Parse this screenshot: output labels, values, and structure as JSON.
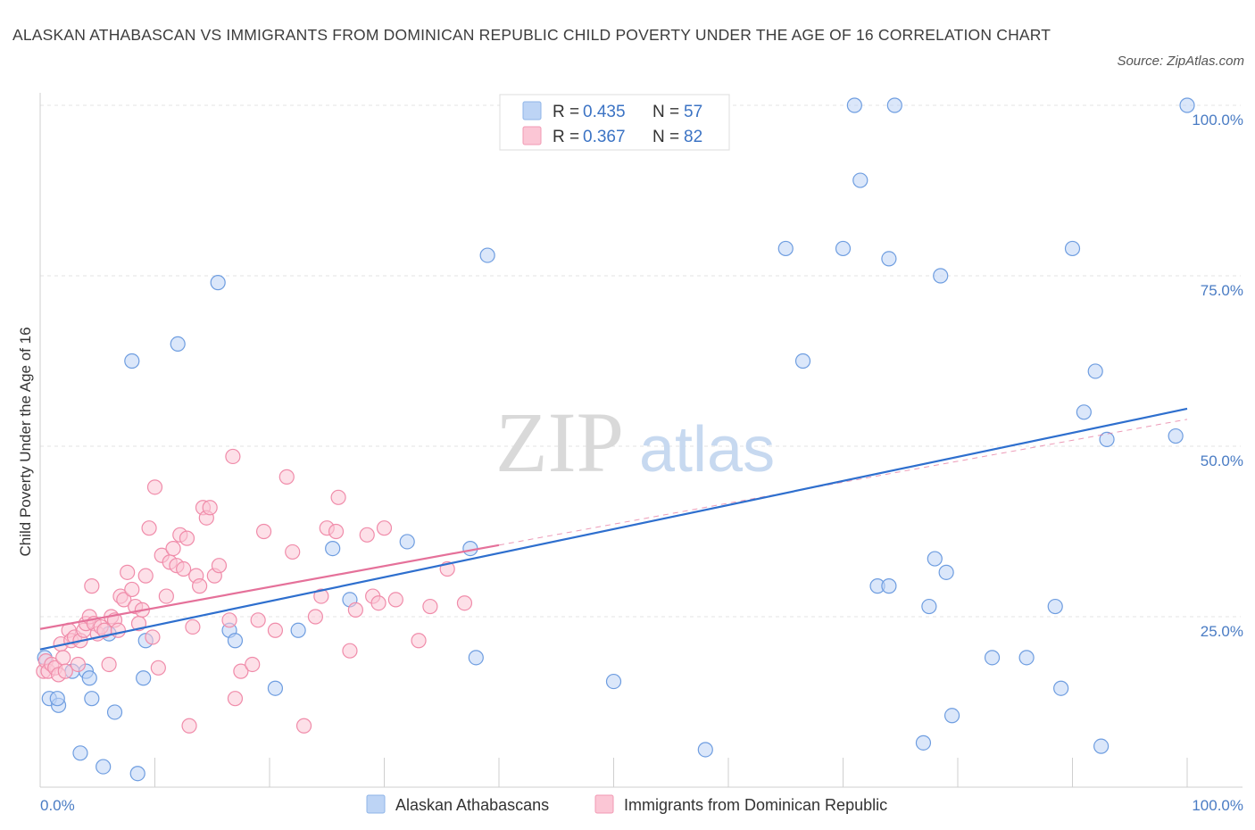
{
  "header": {
    "title": "ALASKAN ATHABASCAN VS IMMIGRANTS FROM DOMINICAN REPUBLIC CHILD POVERTY UNDER THE AGE OF 16 CORRELATION CHART",
    "source": "Source: ZipAtlas.com"
  },
  "watermark": {
    "zip": "ZIP",
    "atlas": "atlas"
  },
  "legend": {
    "r_label": "R =",
    "n_label": "N =",
    "rows": [
      {
        "r": "0.435",
        "n": "57",
        "color": "#8fb5e8",
        "fill": "#bdd4f5"
      },
      {
        "r": "0.367",
        "n": "82",
        "color": "#f29ab4",
        "fill": "#fbc6d5"
      }
    ]
  },
  "chart_data": {
    "type": "scatter",
    "title": "ALASKAN ATHABASCAN VS IMMIGRANTS FROM DOMINICAN REPUBLIC CHILD POVERTY UNDER THE AGE OF 16 CORRELATION CHART",
    "xlabel": "",
    "ylabel": "Child Poverty Under the Age of 16",
    "xlim": [
      0,
      100
    ],
    "ylim": [
      0,
      100
    ],
    "x_tick_labels": [
      "0.0%",
      "100.0%"
    ],
    "y_tick_labels": [
      "25.0%",
      "50.0%",
      "75.0%",
      "100.0%"
    ],
    "y_ticks": [
      25,
      50,
      75,
      100
    ],
    "grid": true,
    "legend_position": "top-center",
    "series": [
      {
        "name": "Alaskan Athabascans",
        "color": "#6e9de0",
        "fill": "#bdd4f5",
        "trend": {
          "x0": 0,
          "y0": 20.2,
          "x1": 100,
          "y1": 55.5,
          "color": "#2e6fce"
        },
        "points": [
          [
            0.4,
            19
          ],
          [
            0.8,
            13
          ],
          [
            1.6,
            12
          ],
          [
            1.5,
            13
          ],
          [
            2.8,
            17
          ],
          [
            3.5,
            5
          ],
          [
            4,
            17
          ],
          [
            4.3,
            16
          ],
          [
            4.5,
            13
          ],
          [
            5.5,
            3
          ],
          [
            6,
            22.5
          ],
          [
            6.5,
            11
          ],
          [
            8,
            62.5
          ],
          [
            8.5,
            2
          ],
          [
            9,
            16
          ],
          [
            9.2,
            21.5
          ],
          [
            12,
            65
          ],
          [
            15.5,
            74
          ],
          [
            16.5,
            23
          ],
          [
            17,
            21.5
          ],
          [
            20.5,
            14.5
          ],
          [
            22.5,
            23
          ],
          [
            25.5,
            35
          ],
          [
            27,
            27.5
          ],
          [
            32,
            36
          ],
          [
            37.5,
            35
          ],
          [
            38,
            19
          ],
          [
            39,
            78
          ],
          [
            50,
            15.5
          ],
          [
            58,
            5.5
          ],
          [
            65,
            79
          ],
          [
            66.5,
            62.5
          ],
          [
            70,
            79
          ],
          [
            71,
            100
          ],
          [
            71.5,
            89
          ],
          [
            73,
            29.5
          ],
          [
            74,
            77.5
          ],
          [
            74,
            29.5
          ],
          [
            74.5,
            100
          ],
          [
            77,
            6.5
          ],
          [
            77.5,
            26.5
          ],
          [
            78,
            33.5
          ],
          [
            78.5,
            75
          ],
          [
            79,
            31.5
          ],
          [
            79.5,
            10.5
          ],
          [
            83,
            19
          ],
          [
            86,
            19
          ],
          [
            88.5,
            26.5
          ],
          [
            89,
            14.5
          ],
          [
            90,
            79
          ],
          [
            91,
            55
          ],
          [
            92,
            61
          ],
          [
            92.5,
            6
          ],
          [
            93,
            51
          ],
          [
            99,
            51.5
          ],
          [
            100,
            100
          ]
        ]
      },
      {
        "name": "Immigrants from Dominican Republic",
        "color": "#f08caa",
        "fill": "#fbc6d5",
        "trend": {
          "x0": 0,
          "y0": 23.2,
          "x1": 40,
          "y1": 35.5,
          "color": "#e5719a"
        },
        "points": [
          [
            0.3,
            17
          ],
          [
            0.5,
            18.5
          ],
          [
            0.7,
            17
          ],
          [
            1,
            18
          ],
          [
            1.3,
            17.5
          ],
          [
            1.6,
            16.5
          ],
          [
            1.8,
            21
          ],
          [
            2,
            19
          ],
          [
            2.2,
            17
          ],
          [
            2.5,
            23
          ],
          [
            2.7,
            21.5
          ],
          [
            3,
            22
          ],
          [
            3.3,
            18
          ],
          [
            3.5,
            21.5
          ],
          [
            3.8,
            23
          ],
          [
            4,
            24
          ],
          [
            4.3,
            25
          ],
          [
            4.5,
            29.5
          ],
          [
            4.7,
            24
          ],
          [
            5,
            22.5
          ],
          [
            5.3,
            23.5
          ],
          [
            5.6,
            23
          ],
          [
            6,
            18
          ],
          [
            6.2,
            25
          ],
          [
            6.5,
            24.5
          ],
          [
            6.8,
            23
          ],
          [
            7,
            28
          ],
          [
            7.3,
            27.5
          ],
          [
            7.6,
            31.5
          ],
          [
            8,
            29
          ],
          [
            8.3,
            26.5
          ],
          [
            8.6,
            24
          ],
          [
            8.9,
            26
          ],
          [
            9.2,
            31
          ],
          [
            9.5,
            38
          ],
          [
            9.8,
            22
          ],
          [
            10,
            44
          ],
          [
            10.3,
            17.5
          ],
          [
            10.6,
            34
          ],
          [
            11,
            28
          ],
          [
            11.3,
            33
          ],
          [
            11.6,
            35
          ],
          [
            11.9,
            32.5
          ],
          [
            12.2,
            37
          ],
          [
            12.5,
            32
          ],
          [
            12.8,
            36.5
          ],
          [
            13,
            9
          ],
          [
            13.3,
            23.5
          ],
          [
            13.6,
            31
          ],
          [
            13.9,
            29.5
          ],
          [
            14.2,
            41
          ],
          [
            14.5,
            39.5
          ],
          [
            14.8,
            41
          ],
          [
            15.2,
            31
          ],
          [
            15.6,
            32.5
          ],
          [
            16.5,
            24.5
          ],
          [
            16.8,
            48.5
          ],
          [
            17,
            13
          ],
          [
            17.5,
            17
          ],
          [
            18.5,
            18
          ],
          [
            19,
            24.5
          ],
          [
            19.5,
            37.5
          ],
          [
            20.5,
            23
          ],
          [
            21.5,
            45.5
          ],
          [
            22,
            34.5
          ],
          [
            23,
            9
          ],
          [
            24,
            25
          ],
          [
            24.5,
            28
          ],
          [
            25,
            38
          ],
          [
            25.8,
            37.5
          ],
          [
            26,
            42.5
          ],
          [
            27,
            20
          ],
          [
            27.5,
            26
          ],
          [
            28.5,
            37
          ],
          [
            29,
            28
          ],
          [
            29.5,
            27
          ],
          [
            30,
            38
          ],
          [
            31,
            27.5
          ],
          [
            33,
            21.5
          ],
          [
            34,
            26.5
          ],
          [
            35.5,
            32
          ],
          [
            37,
            27
          ]
        ]
      }
    ]
  },
  "bottom_legend": [
    {
      "label": "Alaskan Athabascans",
      "color": "#8fb5e8",
      "fill": "#bdd4f5"
    },
    {
      "label": "Immigrants from Dominican Republic",
      "color": "#f29ab4",
      "fill": "#fbc6d5"
    }
  ]
}
